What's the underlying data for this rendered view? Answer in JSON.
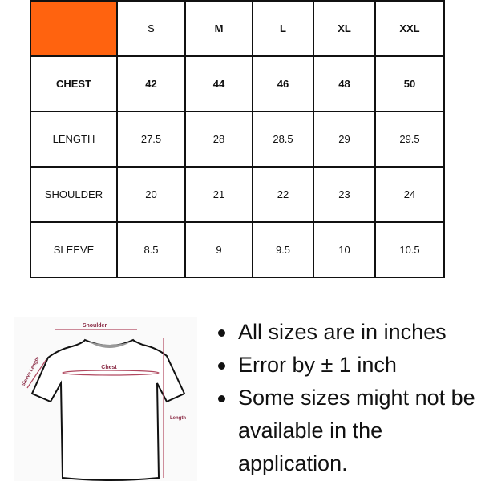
{
  "header_color": "#ff630f",
  "sizes": [
    "S",
    "M",
    "L",
    "XL",
    "XXL"
  ],
  "rows": [
    {
      "label": "CHEST",
      "values": [
        "42",
        "44",
        "46",
        "48",
        "50"
      ]
    },
    {
      "label": "LENGTH",
      "values": [
        "27.5",
        "28",
        "28.5",
        "29",
        "29.5"
      ]
    },
    {
      "label": "SHOULDER",
      "values": [
        "20",
        "21",
        "22",
        "23",
        "24"
      ]
    },
    {
      "label": "SLEEVE",
      "values": [
        "8.5",
        "9",
        "9.5",
        "10",
        "10.5"
      ]
    }
  ],
  "diagram": {
    "shoulder": "Shoulder",
    "chest": "Chest",
    "sleeve": "Sleeve Length",
    "length": "Length"
  },
  "notes": [
    "All sizes are in inches",
    "Error by ± 1 inch",
    "Some sizes might not be available in the application."
  ]
}
